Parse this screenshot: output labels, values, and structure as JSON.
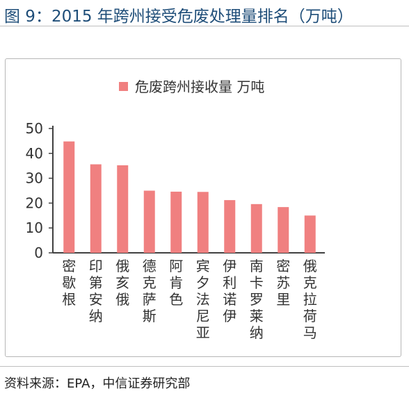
{
  "figure": {
    "title": "图 9：2015 年跨州接受危废处理量排名（万吨）",
    "source": "资料来源：EPA，中信证券研究部"
  },
  "colors": {
    "bar": "#f08080",
    "axis": "#404040",
    "title": "#1f4e79"
  },
  "chart_data": {
    "type": "bar",
    "title": "",
    "xlabel": "",
    "ylabel": "",
    "ylim": [
      0,
      50
    ],
    "yticks": [
      0,
      10,
      20,
      30,
      40,
      50
    ],
    "grid": false,
    "legend": {
      "position": "top",
      "entries": [
        "危废跨州接收量 万吨"
      ]
    },
    "categories": [
      "密歇根",
      "印第安纳",
      "俄亥俄",
      "德克萨斯",
      "阿肯色",
      "宾夕法尼亚",
      "伊利诺伊",
      "南卡罗莱纳",
      "密苏里",
      "俄克拉荷马"
    ],
    "series": [
      {
        "name": "危废跨州接收量 万吨",
        "values": [
          44.8,
          35.6,
          35.2,
          25.0,
          24.6,
          24.5,
          21.2,
          19.6,
          18.4,
          15.0
        ]
      }
    ]
  }
}
